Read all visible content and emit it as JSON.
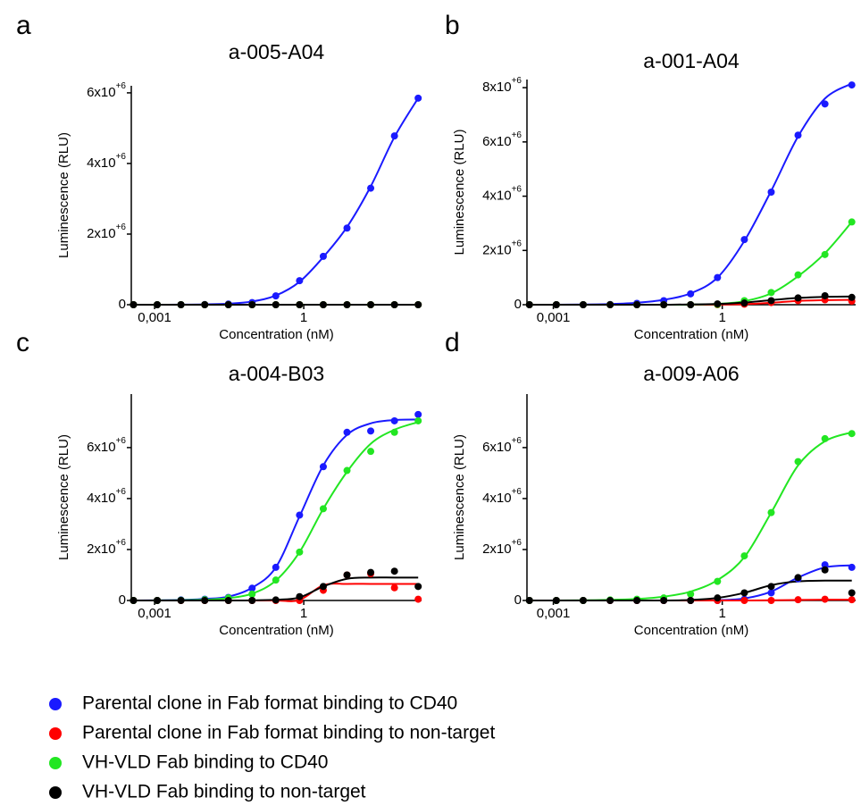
{
  "chart_data": [
    {
      "type": "scatter",
      "label": "a",
      "title": "a-005-A04",
      "x_label": "Concentration  (nM)",
      "y_label": "Luminescence  (RLU)",
      "log_x": true,
      "x": [
        0.000376,
        0.00113,
        0.00339,
        0.0102,
        0.0305,
        0.0914,
        0.274,
        0.823,
        2.47,
        7.41,
        22.2,
        66.7,
        200
      ],
      "xlim": [
        0.00034,
        234
      ],
      "xticks": [
        {
          "value": 0.001,
          "label": "0,001"
        },
        1
      ],
      "ylim": [
        0,
        6200000
      ],
      "yticks": [
        0,
        {
          "value": 2000000,
          "label": "2x10",
          "exponent": "+6"
        },
        {
          "value": 4000000,
          "label": "4x10",
          "exponent": "+6"
        },
        {
          "value": 6000000,
          "label": "6x10",
          "exponent": "+6"
        }
      ],
      "series": [
        {
          "name": "Parental clone in Fab format binding to CD40",
          "color": "#1a1aff",
          "values": [
            0,
            0,
            0,
            5000,
            20000,
            60000,
            250000,
            680000,
            1370000,
            2170000,
            3300000,
            4780000,
            5850000
          ],
          "fit": [
            0,
            1000,
            3000,
            10000,
            30000,
            90000,
            260000,
            650000,
            1350000,
            2200000,
            3350000,
            4750000,
            5850000
          ]
        },
        {
          "name": "Parental clone in Fab format binding to non-target",
          "color": "#ff0000",
          "values": [
            0,
            0,
            0,
            0,
            0,
            0,
            0,
            0,
            0,
            0,
            0,
            0,
            0
          ],
          "fit": [
            0,
            0,
            0,
            0,
            0,
            0,
            0,
            0,
            0,
            0,
            0,
            0,
            0
          ]
        },
        {
          "name": "VH-VLD Fab binding to CD40",
          "color": "#22e622",
          "values": [
            0,
            0,
            0,
            0,
            0,
            0,
            0,
            0,
            0,
            0,
            0,
            0,
            0
          ],
          "fit": [
            0,
            0,
            0,
            0,
            0,
            0,
            0,
            0,
            0,
            0,
            0,
            0,
            0
          ]
        },
        {
          "name": "VH-VLD Fab binding to non-target",
          "color": "#000000",
          "values": [
            0,
            0,
            0,
            0,
            0,
            0,
            0,
            0,
            0,
            0,
            0,
            0,
            0
          ],
          "fit": [
            0,
            0,
            0,
            0,
            0,
            0,
            0,
            0,
            0,
            0,
            0,
            0,
            0
          ]
        }
      ]
    },
    {
      "type": "scatter",
      "label": "b",
      "title": "a-001-A04",
      "x_label": "Concentration  (nM)",
      "y_label": "Luminescence  (RLU)",
      "log_x": true,
      "x": [
        0.000376,
        0.00113,
        0.00339,
        0.0102,
        0.0305,
        0.0914,
        0.274,
        0.823,
        2.47,
        7.41,
        22.2,
        66.7,
        200
      ],
      "xlim": [
        0.00034,
        234
      ],
      "xticks": [
        {
          "value": 0.001,
          "label": "0,001"
        },
        1
      ],
      "ylim": [
        0,
        8300000
      ],
      "yticks": [
        0,
        {
          "value": 2000000,
          "label": "2x10",
          "exponent": "+6"
        },
        {
          "value": 4000000,
          "label": "4x10",
          "exponent": "+6"
        },
        {
          "value": 6000000,
          "label": "6x10",
          "exponent": "+6"
        },
        {
          "value": 8000000,
          "label": "8x10",
          "exponent": "+6"
        }
      ],
      "series": [
        {
          "color": "#1a1aff",
          "values": [
            0,
            0,
            0,
            10000,
            50000,
            150000,
            400000,
            1000000,
            2400000,
            4150000,
            6250000,
            7400000,
            8100000
          ],
          "fit": [
            0,
            2000,
            8000,
            25000,
            70000,
            180000,
            420000,
            1000000,
            2350000,
            4200000,
            6200000,
            7600000,
            8150000
          ]
        },
        {
          "color": "#ff0000",
          "values": [
            0,
            0,
            0,
            0,
            0,
            0,
            0,
            0,
            20000,
            80000,
            150000,
            180000,
            130000
          ],
          "fit": [
            0,
            0,
            0,
            0,
            0,
            0,
            0,
            5000,
            20000,
            70000,
            140000,
            170000,
            180000
          ]
        },
        {
          "color": "#22e622",
          "values": [
            0,
            0,
            0,
            0,
            0,
            0,
            0,
            10000,
            150000,
            450000,
            1100000,
            1850000,
            3050000
          ],
          "fit": [
            0,
            0,
            0,
            0,
            0,
            0,
            5000,
            30000,
            130000,
            420000,
            1050000,
            1900000,
            3050000
          ]
        },
        {
          "color": "#000000",
          "values": [
            0,
            0,
            0,
            0,
            0,
            0,
            0,
            30000,
            60000,
            150000,
            250000,
            330000,
            270000
          ],
          "fit": [
            0,
            0,
            0,
            0,
            0,
            0,
            10000,
            30000,
            80000,
            170000,
            250000,
            290000,
            300000
          ]
        }
      ]
    },
    {
      "type": "scatter",
      "label": "c",
      "title": "a-004-B03",
      "x_label": "Concentration  (nM)",
      "y_label": "Luminescence  (RLU)",
      "log_x": true,
      "x": [
        0.000376,
        0.00113,
        0.00339,
        0.0102,
        0.0305,
        0.0914,
        0.274,
        0.823,
        2.47,
        7.41,
        22.2,
        66.7,
        200
      ],
      "xlim": [
        0.00034,
        234
      ],
      "xticks": [
        {
          "value": 0.001,
          "label": "0,001"
        },
        1
      ],
      "ylim": [
        0,
        8100000
      ],
      "yticks": [
        0,
        {
          "value": 2000000,
          "label": "2x10",
          "exponent": "+6"
        },
        {
          "value": 4000000,
          "label": "4x10",
          "exponent": "+6"
        },
        {
          "value": 6000000,
          "label": "6x10",
          "exponent": "+6"
        }
      ],
      "series": [
        {
          "color": "#1a1aff",
          "values": [
            0,
            0,
            20000,
            50000,
            120000,
            480000,
            1300000,
            3350000,
            5250000,
            6600000,
            6650000,
            7050000,
            7300000
          ],
          "fit": [
            0,
            5000,
            20000,
            60000,
            150000,
            500000,
            1300000,
            3300000,
            5300000,
            6500000,
            6950000,
            7080000,
            7100000
          ]
        },
        {
          "color": "#ff0000",
          "values": [
            0,
            0,
            0,
            0,
            0,
            0,
            0,
            0,
            400000,
            1000000,
            1050000,
            500000,
            50000
          ],
          "fit": [
            0,
            0,
            0,
            0,
            0,
            0,
            0,
            20000,
            600000,
            650000,
            650000,
            650000,
            650000
          ]
        },
        {
          "color": "#22e622",
          "values": [
            0,
            0,
            10000,
            30000,
            100000,
            250000,
            800000,
            1900000,
            3600000,
            5100000,
            5850000,
            6600000,
            7050000
          ],
          "fit": [
            0,
            3000,
            10000,
            30000,
            90000,
            270000,
            780000,
            1900000,
            3600000,
            5050000,
            6150000,
            6700000,
            7000000
          ]
        },
        {
          "color": "#000000",
          "values": [
            0,
            0,
            0,
            0,
            0,
            0,
            20000,
            150000,
            550000,
            1000000,
            1100000,
            1150000,
            550000
          ],
          "fit": [
            0,
            0,
            0,
            0,
            0,
            5000,
            30000,
            120000,
            550000,
            850000,
            900000,
            900000,
            900000
          ]
        }
      ]
    },
    {
      "type": "scatter",
      "label": "d",
      "title": "a-009-A06",
      "x_label": "Concentration  (nM)",
      "y_label": "Luminescence  (RLU)",
      "log_x": true,
      "x": [
        0.000376,
        0.00113,
        0.00339,
        0.0102,
        0.0305,
        0.0914,
        0.274,
        0.823,
        2.47,
        7.41,
        22.2,
        66.7,
        200
      ],
      "xlim": [
        0.00034,
        234
      ],
      "xticks": [
        {
          "value": 0.001,
          "label": "0,001"
        },
        1
      ],
      "ylim": [
        0,
        8100000
      ],
      "yticks": [
        0,
        {
          "value": 2000000,
          "label": "2x10",
          "exponent": "+6"
        },
        {
          "value": 4000000,
          "label": "4x10",
          "exponent": "+6"
        },
        {
          "value": 6000000,
          "label": "6x10",
          "exponent": "+6"
        }
      ],
      "series": [
        {
          "color": "#1a1aff",
          "values": [
            0,
            0,
            0,
            0,
            0,
            0,
            0,
            0,
            50000,
            300000,
            850000,
            1400000,
            1300000
          ],
          "fit": [
            0,
            0,
            0,
            0,
            0,
            0,
            0,
            10000,
            80000,
            350000,
            900000,
            1300000,
            1380000
          ]
        },
        {
          "color": "#ff0000",
          "values": [
            0,
            0,
            0,
            0,
            0,
            0,
            0,
            0,
            0,
            0,
            30000,
            50000,
            30000
          ],
          "fit": [
            0,
            0,
            0,
            0,
            0,
            0,
            0,
            0,
            0,
            10000,
            20000,
            30000,
            30000
          ]
        },
        {
          "color": "#22e622",
          "values": [
            0,
            0,
            0,
            20000,
            50000,
            100000,
            250000,
            750000,
            1750000,
            3450000,
            5450000,
            6350000,
            6550000
          ],
          "fit": [
            0,
            2000,
            8000,
            25000,
            60000,
            150000,
            350000,
            800000,
            1700000,
            3450000,
            5300000,
            6250000,
            6600000
          ]
        },
        {
          "color": "#000000",
          "values": [
            0,
            0,
            0,
            0,
            0,
            0,
            0,
            100000,
            300000,
            550000,
            900000,
            1200000,
            300000
          ],
          "fit": [
            0,
            0,
            0,
            0,
            0,
            0,
            20000,
            100000,
            300000,
            600000,
            750000,
            780000,
            780000
          ]
        }
      ]
    }
  ]
}
